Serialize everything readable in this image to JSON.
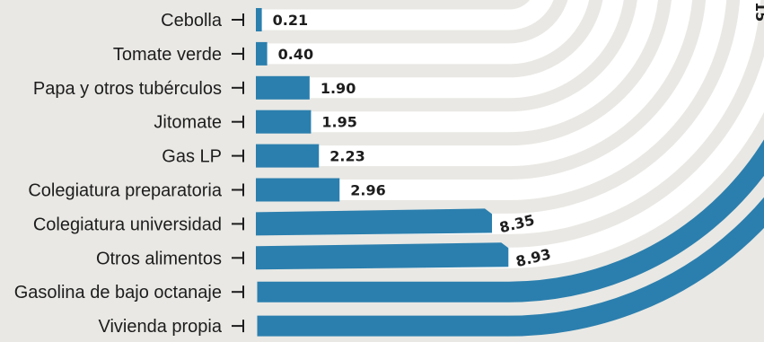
{
  "chart_data": {
    "type": "bar",
    "orientation": "horizontal",
    "categories": [
      "Cebolla",
      "Tomate verde",
      "Papa y otros tubérculos",
      "Jitomate",
      "Gas LP",
      "Colegiatura preparatoria",
      "Colegiatura universidad",
      "Otros alimentos",
      "Gasolina de bajo octanaje",
      "Vivienda propia"
    ],
    "values": [
      0.21,
      0.4,
      1.9,
      1.95,
      2.23,
      2.96,
      8.35,
      8.93,
      null,
      null
    ],
    "value_labels": [
      "0.21",
      "0.40",
      "1.90",
      "1.95",
      "2.23",
      "2.96",
      "8.35",
      "8.93",
      "",
      ""
    ],
    "partial_label": "15",
    "colors": {
      "bar": "#2b7fae",
      "track": "#ffffff",
      "background": "#e9e8e4",
      "text": "#1d1d1d"
    }
  }
}
